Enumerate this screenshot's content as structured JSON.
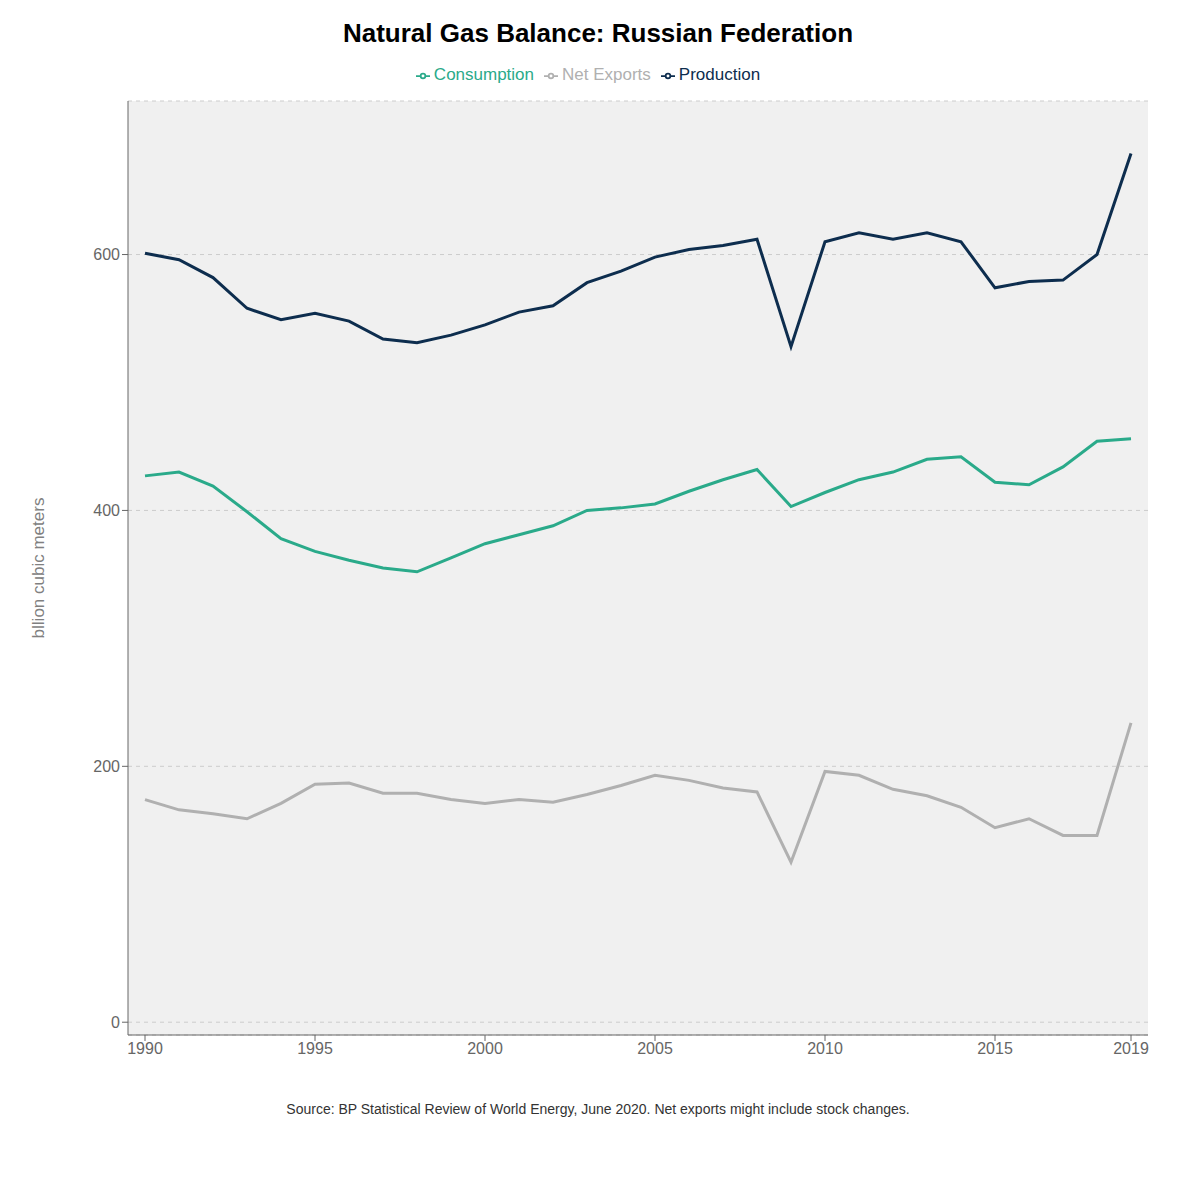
{
  "chart_data": {
    "type": "line",
    "title": "Natural Gas Balance: Russian Federation",
    "ylabel": "bllion cubic meters",
    "annotations": [
      "Source: BP Statistical Review of World Energy, June 2020. Net exports might include stock changes."
    ],
    "x": [
      1990,
      1991,
      1992,
      1993,
      1994,
      1995,
      1996,
      1997,
      1998,
      1999,
      2000,
      2001,
      2002,
      2003,
      2004,
      2005,
      2006,
      2007,
      2008,
      2009,
      2010,
      2011,
      2012,
      2013,
      2014,
      2015,
      2016,
      2017,
      2018,
      2019
    ],
    "series": [
      {
        "name": "Production",
        "color": "#0d2d4e",
        "values": [
          601,
          596,
          582,
          558,
          549,
          554,
          548,
          534,
          531,
          537,
          545,
          555,
          560,
          578,
          587,
          598,
          604,
          607,
          612,
          528,
          610,
          617,
          612,
          617,
          610,
          574,
          579,
          580,
          600,
          679
        ]
      },
      {
        "name": "Consumption",
        "color": "#2aaa8a",
        "values": [
          427,
          430,
          419,
          399,
          378,
          368,
          361,
          355,
          352,
          363,
          374,
          381,
          388,
          400,
          402,
          405,
          415,
          424,
          432,
          403,
          414,
          424,
          430,
          440,
          442,
          422,
          420,
          434,
          454,
          456
        ]
      },
      {
        "name": "Net Exports",
        "color": "#b0b0b0",
        "values": [
          174,
          166,
          163,
          159,
          171,
          186,
          187,
          179,
          179,
          174,
          171,
          174,
          172,
          178,
          185,
          193,
          189,
          183,
          180,
          125,
          196,
          193,
          182,
          177,
          168,
          152,
          159,
          146,
          146,
          234
        ]
      }
    ],
    "xlim": [
      1989.5,
      2019.5
    ],
    "xticks": [
      1990,
      1995,
      2000,
      2005,
      2010,
      2015,
      2019
    ],
    "ylim": [
      -10,
      720
    ],
    "yticks": [
      0,
      200,
      400,
      600
    ],
    "grid": true,
    "legend": "top"
  }
}
